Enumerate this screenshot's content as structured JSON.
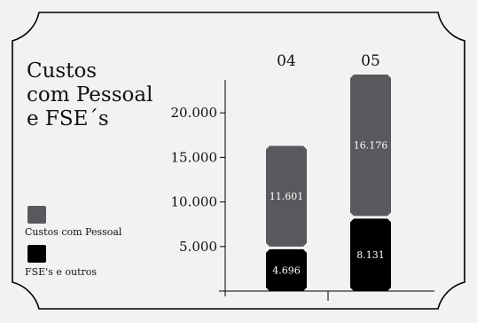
{
  "title_lines": [
    "Custos",
    "com Pessoal",
    "e FSE´s"
  ],
  "colors": {
    "background": "#f2f2f2",
    "pessoal": "#59585c",
    "fse": "#000000",
    "frame": "#000000"
  },
  "chart_data": {
    "type": "bar",
    "stacked": true,
    "title": "Custos com Pessoal e FSE´s",
    "categories": [
      "04",
      "05"
    ],
    "series": [
      {
        "name": "FSE's e outros",
        "values": [
          4696,
          8131
        ],
        "labels": [
          "4.696",
          "8.131"
        ],
        "color": "#000000"
      },
      {
        "name": "Custos com Pessoal",
        "values": [
          11601,
          16176
        ],
        "labels": [
          "11.601",
          "16.176"
        ],
        "color": "#59585c"
      }
    ],
    "yticks": [
      5000,
      10000,
      15000,
      20000
    ],
    "ytick_labels": [
      "5.000",
      "10.000",
      "15.000",
      "20.000"
    ],
    "ylim": [
      0,
      24500
    ],
    "legend": [
      {
        "name": "Custos com Pessoal",
        "color": "#59585c"
      },
      {
        "name": "FSE's e outros",
        "color": "#000000"
      }
    ],
    "legend_position": "left"
  }
}
